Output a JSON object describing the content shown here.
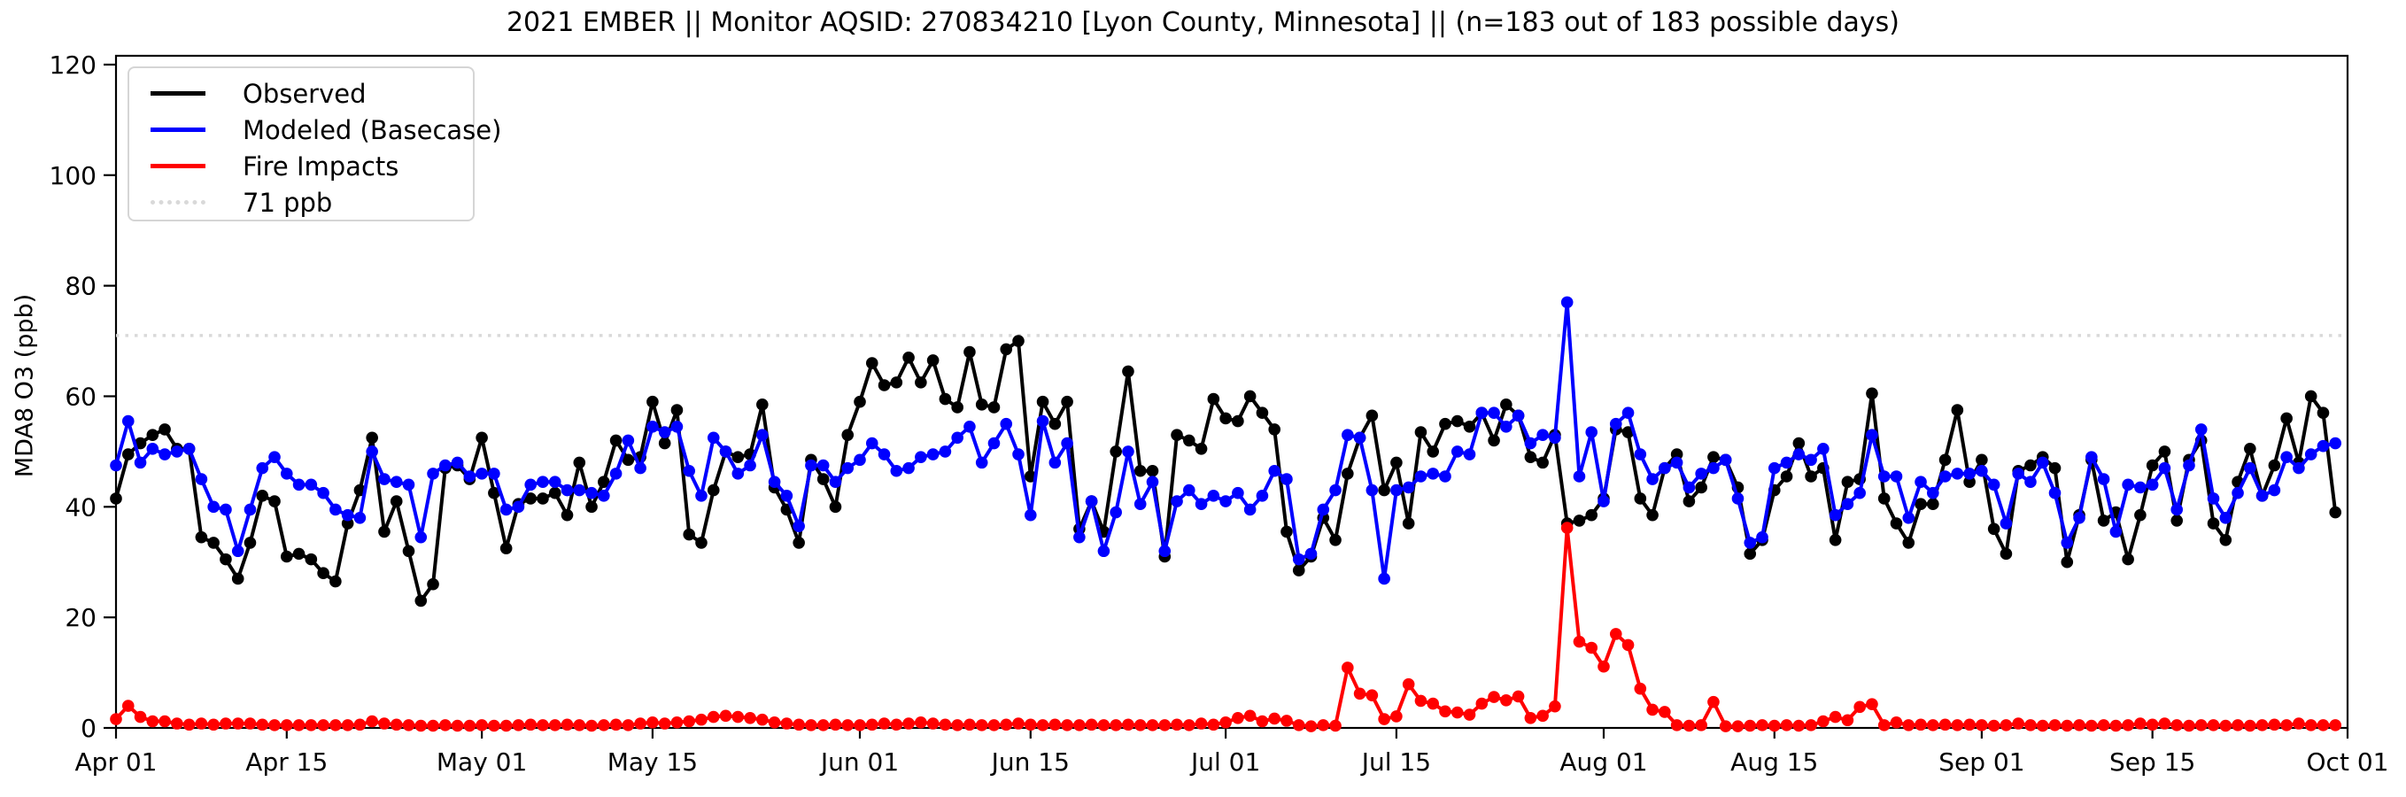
{
  "title": "2021 EMBER || Monitor AQSID: 270834210 [Lyon County, Minnesota] || (n=183 out of 183 possible days)",
  "axes": {
    "ylabel": "MDA8 O3 (ppb)",
    "yticks": [
      0,
      20,
      40,
      60,
      80,
      100,
      120
    ],
    "xticks": [
      {
        "label": "Apr 01",
        "day": 0
      },
      {
        "label": "Apr 15",
        "day": 14
      },
      {
        "label": "May 01",
        "day": 30
      },
      {
        "label": "May 15",
        "day": 44
      },
      {
        "label": "Jun 01",
        "day": 61
      },
      {
        "label": "Jun 15",
        "day": 75
      },
      {
        "label": "Jul 01",
        "day": 91
      },
      {
        "label": "Jul 15",
        "day": 105
      },
      {
        "label": "Aug 01",
        "day": 122
      },
      {
        "label": "Aug 15",
        "day": 136
      },
      {
        "label": "Sep 01",
        "day": 153
      },
      {
        "label": "Sep 15",
        "day": 167
      },
      {
        "label": "Oct 01",
        "day": 183
      }
    ]
  },
  "legend": [
    {
      "label": "Observed",
      "color": "#000000",
      "style": "solid"
    },
    {
      "label": "Modeled (Basecase)",
      "color": "#0000ff",
      "style": "solid"
    },
    {
      "label": "Fire Impacts",
      "color": "#ff0000",
      "style": "solid"
    },
    {
      "label": "71 ppb",
      "color": "#d9d9d9",
      "style": "dotted"
    }
  ],
  "chart_data": {
    "type": "line",
    "x_unit": "day_index_from_Apr_01_2021",
    "n_days": 183,
    "x_range_labels": [
      "Apr 01",
      "Oct 01"
    ],
    "ylim": [
      0,
      120
    ],
    "grid": false,
    "legend_position": "upper left",
    "threshold": {
      "value": 71,
      "label": "71 ppb",
      "color": "#d9d9d9",
      "style": "dotted"
    },
    "series": [
      {
        "name": "Observed",
        "color": "#000000",
        "marker": "circle",
        "values": [
          41.5,
          49.5,
          51.5,
          53,
          54,
          50.5,
          50.5,
          34.5,
          33.5,
          30.5,
          27,
          33.5,
          42,
          41,
          31,
          31.5,
          30.5,
          28,
          26.5,
          37,
          43,
          52.5,
          35.5,
          41,
          32,
          23,
          26,
          47,
          47.5,
          45,
          52.5,
          42.5,
          32.5,
          40.5,
          41.5,
          41.5,
          42.5,
          38.5,
          48,
          40,
          44.5,
          52,
          48.5,
          49,
          59,
          51.5,
          57.5,
          35,
          33.5,
          43,
          50,
          49,
          49.5,
          58.5,
          43.5,
          39.5,
          33.5,
          48.5,
          45,
          40,
          53,
          59,
          66,
          62,
          62.5,
          67,
          62.5,
          66.5,
          59.5,
          58,
          68,
          58.5,
          58,
          68.5,
          70,
          45.5,
          59,
          55,
          59,
          36,
          41,
          35.5,
          50,
          64.5,
          46.5,
          46.5,
          31,
          53,
          52,
          50.5,
          59.5,
          56,
          55.5,
          60,
          57,
          54,
          35.5,
          28.5,
          31,
          38,
          34,
          46,
          52.5,
          56.5,
          43,
          48,
          37,
          53.5,
          50,
          55,
          55.5,
          54.5,
          57,
          52,
          58.5,
          56.5,
          49,
          48,
          53,
          37,
          37.5,
          38.5,
          41.5,
          54,
          53.5,
          41.5,
          38.5,
          47,
          49.5,
          41,
          43.5,
          49,
          48.5,
          43.5,
          31.5,
          34,
          43,
          45.5,
          51.5,
          45.5,
          47,
          34,
          44.5,
          45,
          60.5,
          41.5,
          37,
          33.5,
          40.5,
          40.5,
          48.5,
          57.5,
          44.5,
          48.5,
          36,
          31.5,
          46.5,
          47.5,
          49,
          47,
          30,
          38.5,
          48.5,
          37.5,
          39,
          30.5,
          38.5,
          47.5,
          50,
          37.5,
          48.5,
          52,
          37,
          34,
          44.5,
          50.5,
          42,
          47.5,
          56,
          48,
          60,
          57,
          39
        ]
      },
      {
        "name": "Modeled (Basecase)",
        "color": "#0000ff",
        "marker": "circle",
        "values": [
          47.5,
          55.5,
          48,
          50.5,
          49.5,
          50,
          50.5,
          45,
          40,
          39.5,
          32,
          39.5,
          47,
          49,
          46,
          44,
          44,
          42.5,
          39.5,
          38.5,
          38,
          50,
          45,
          44.5,
          44,
          34.5,
          46,
          47.5,
          48,
          45.5,
          46,
          46,
          39.5,
          40,
          44,
          44.5,
          44.5,
          43,
          43,
          42.5,
          42,
          46,
          52,
          47,
          54.5,
          53.5,
          54.5,
          46.5,
          42,
          52.5,
          50,
          46,
          47.5,
          53,
          44.5,
          42,
          36.5,
          47.5,
          47.5,
          44.5,
          47,
          48.5,
          51.5,
          49.5,
          46.5,
          47,
          49,
          49.5,
          50,
          52.5,
          54.5,
          48,
          51.5,
          55,
          49.5,
          38.5,
          55.5,
          48,
          51.5,
          34.5,
          41,
          32,
          39,
          50,
          40.5,
          44.5,
          32,
          41,
          43,
          40.5,
          42,
          41,
          42.5,
          39.5,
          42,
          46.5,
          45,
          30.5,
          31.5,
          39.5,
          43,
          53,
          52.5,
          43,
          27,
          43,
          43.5,
          45.5,
          46,
          45.5,
          50,
          49.5,
          57,
          57,
          54.5,
          56.5,
          51.5,
          53,
          52.5,
          77,
          45.5,
          53.5,
          41,
          55,
          57,
          49.5,
          45,
          47,
          48,
          43.5,
          46,
          47,
          48.5,
          41.5,
          33.5,
          34.5,
          47,
          48,
          49.5,
          48.5,
          50.5,
          38.5,
          40.5,
          42.5,
          53,
          45.5,
          45.5,
          38,
          44.5,
          42.5,
          45.5,
          46,
          46,
          46.5,
          44,
          37,
          46,
          44.5,
          48,
          42.5,
          33.5,
          38,
          49,
          45,
          35.5,
          44,
          43.5,
          44,
          47,
          39.5,
          47.5,
          54,
          41.5,
          38,
          42.5,
          47,
          42,
          43,
          49,
          47,
          49.5,
          51,
          51.5
        ]
      },
      {
        "name": "Fire Impacts",
        "color": "#ff0000",
        "marker": "circle",
        "values": [
          1.6,
          4,
          2,
          1.2,
          1.2,
          0.8,
          0.6,
          0.8,
          0.6,
          0.8,
          0.8,
          0.8,
          0.6,
          0.5,
          0.5,
          0.5,
          0.5,
          0.5,
          0.5,
          0.5,
          0.6,
          1.2,
          0.8,
          0.6,
          0.5,
          0.4,
          0.4,
          0.5,
          0.4,
          0.4,
          0.5,
          0.4,
          0.4,
          0.5,
          0.6,
          0.5,
          0.5,
          0.6,
          0.5,
          0.4,
          0.5,
          0.6,
          0.5,
          0.8,
          1,
          0.8,
          1,
          1.2,
          1.5,
          2,
          2.2,
          2,
          1.8,
          1.5,
          1,
          0.8,
          0.6,
          0.5,
          0.5,
          0.6,
          0.5,
          0.5,
          0.6,
          0.8,
          0.6,
          0.8,
          1,
          0.8,
          0.6,
          0.5,
          0.6,
          0.5,
          0.5,
          0.6,
          0.8,
          0.6,
          0.5,
          0.6,
          0.5,
          0.5,
          0.6,
          0.5,
          0.5,
          0.6,
          0.5,
          0.5,
          0.5,
          0.6,
          0.5,
          0.8,
          0.6,
          1,
          1.8,
          2.2,
          1.2,
          1.7,
          1.3,
          0.5,
          0.3,
          0.5,
          0.4,
          10.9,
          6.2,
          5.9,
          1.6,
          2.1,
          7.9,
          4.9,
          4.4,
          3,
          2.8,
          2.4,
          4.4,
          5.6,
          5,
          5.7,
          1.8,
          2.2,
          3.9,
          36.2,
          15.6,
          14.5,
          11.1,
          17,
          15,
          7.1,
          3.3,
          2.9,
          0.5,
          0.4,
          0.5,
          4.7,
          0.3,
          0.3,
          0.4,
          0.5,
          0.4,
          0.5,
          0.4,
          0.5,
          1.2,
          2,
          1.4,
          3.8,
          4.3,
          0.5,
          1,
          0.5,
          0.6,
          0.5,
          0.6,
          0.5,
          0.6,
          0.5,
          0.4,
          0.5,
          0.8,
          0.5,
          0.4,
          0.5,
          0.4,
          0.5,
          0.4,
          0.5,
          0.4,
          0.5,
          0.8,
          0.6,
          0.8,
          0.5,
          0.4,
          0.5,
          0.5,
          0.4,
          0.5,
          0.4,
          0.5,
          0.6,
          0.5,
          0.8,
          0.5,
          0.5,
          0.5
        ]
      }
    ]
  }
}
